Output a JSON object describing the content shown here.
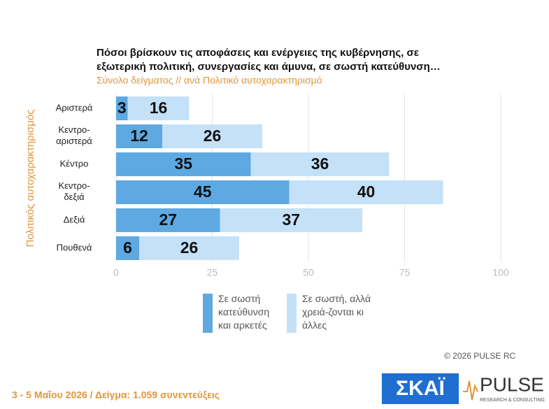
{
  "chart_data": {
    "type": "stacked_bar_horizontal",
    "title": [
      "Πόσοι βρίσκουν τις αποφάσεις και ενέργειες της κυβέρνησης, σε",
      "εξωτερική πολιτική, συνεργασίες και άμυνα, σε σωστή κατεύθυνση…"
    ],
    "subtitle": "Σύνολο δείγματος // ανά Πολιτικό    αυτοχαρακτηρισμό",
    "y_label": "Πολιτικός  αυτοχαρακτηρισμός",
    "categories": [
      "Αριστερά",
      "Κεντρο-αριστερά",
      "Κέντρο",
      "Κεντρο-δεξιά",
      "Δεξιά",
      "Πουθενά"
    ],
    "series": [
      {
        "name": "Σε σωστή κατεύθυνση και αρκετές",
        "color": "#5ea9e2",
        "values": [
          3,
          12,
          35,
          45,
          27,
          6
        ]
      },
      {
        "name": "Σε σωστή, αλλά χρειά-ζονται κι άλλες",
        "color": "#c4e1f7",
        "values": [
          16,
          26,
          36,
          40,
          37,
          26
        ]
      }
    ],
    "xlim": [
      0,
      100
    ],
    "xticks": [
      0,
      25,
      50,
      75,
      100
    ],
    "grid": true
  },
  "footer": {
    "date_sample": "3 - 5  Μαΐου 2026  /  Δείγμα:  1.059 συνεντεύξεις",
    "copyright": "©  2026  PULSE RC",
    "logo_left": "ΣΚΑΪ",
    "logo_right": "PULSE",
    "logo_right_sub": "RESEARCH & CONSULTING"
  }
}
